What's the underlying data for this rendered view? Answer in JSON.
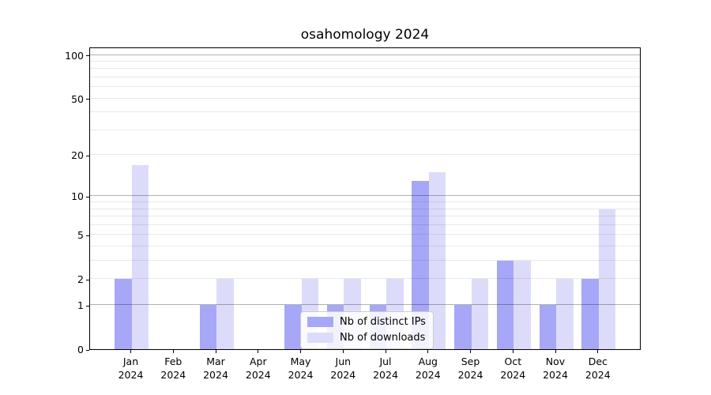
{
  "chart_data": {
    "type": "bar",
    "title": "osahomology 2024",
    "categories": [
      "Jan",
      "Feb",
      "Mar",
      "Apr",
      "May",
      "Jun",
      "Jul",
      "Aug",
      "Sep",
      "Oct",
      "Nov",
      "Dec"
    ],
    "category_year": "2024",
    "series": [
      {
        "name": "Nb of distinct IPs",
        "color": "#a7a7f8",
        "values": [
          2,
          0,
          1,
          0,
          1,
          1,
          1,
          13,
          1,
          3,
          1,
          2
        ]
      },
      {
        "name": "Nb of downloads",
        "color": "#dcdcfa",
        "values": [
          17,
          0,
          2,
          0,
          2,
          2,
          2,
          15,
          2,
          3,
          2,
          8
        ]
      }
    ],
    "xlabel": "",
    "ylabel": "",
    "y_axis": {
      "scale": "log1p",
      "tick_values": [
        0,
        1,
        2,
        5,
        10,
        20,
        50,
        100
      ],
      "major_gridlines": [
        1,
        10,
        100
      ],
      "minor_gridlines": [
        2,
        3,
        4,
        5,
        6,
        7,
        8,
        9,
        20,
        30,
        40,
        50,
        60,
        70,
        80,
        90
      ],
      "ylim": [
        0,
        113
      ],
      "grid": "on"
    },
    "legend": {
      "position": "lower-center-inside"
    },
    "colors": {
      "axis": "#000000",
      "major_grid": "#b3b3b3",
      "minor_grid": "#e8e8e8",
      "background": "#ffffff"
    }
  }
}
